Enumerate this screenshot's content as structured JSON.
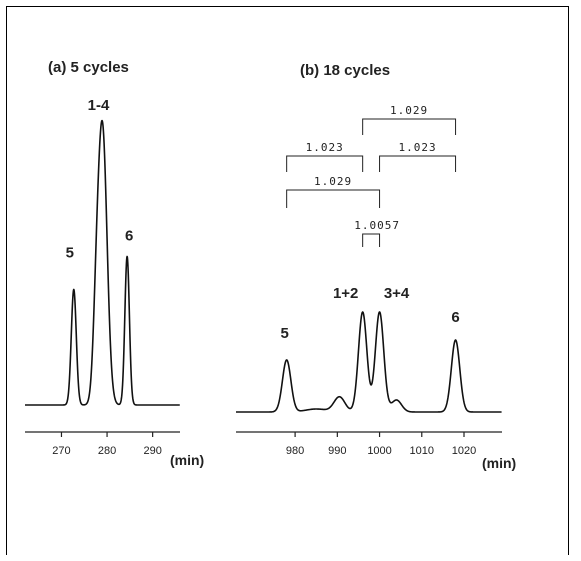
{
  "chart_data": [
    {
      "type": "line",
      "title": "(a) 5 cycles",
      "xlabel": "(min)",
      "ylabel": "",
      "xlim": [
        262,
        296
      ],
      "xticks": [
        270,
        280,
        290
      ],
      "grid": false,
      "peaks": [
        {
          "label": "5",
          "x": 272.7,
          "height": 0.42
        },
        {
          "label": "1-4",
          "x": 279.0,
          "height": 1.0
        },
        {
          "label": "6",
          "x": 284.4,
          "height": 0.54
        }
      ]
    },
    {
      "type": "line",
      "title": "(b) 18 cycles",
      "xlabel": "(min)",
      "ylabel": "",
      "xlim": [
        966,
        1029
      ],
      "xticks": [
        980,
        990,
        1000,
        1010,
        1020
      ],
      "grid": false,
      "peaks": [
        {
          "label": "5",
          "x": 978.0,
          "height": 0.52
        },
        {
          "label": "1+2",
          "x": 996.0,
          "height": 1.0
        },
        {
          "label": "3+4",
          "x": 1000.0,
          "height": 1.0
        },
        {
          "label": "6",
          "x": 1018.0,
          "height": 0.72
        }
      ],
      "ratios": [
        {
          "label": "1.029",
          "from": 996.0,
          "to": 1018.0
        },
        {
          "label": "1.023",
          "from": 978.0,
          "to": 996.0
        },
        {
          "label": "1.023",
          "from": 1000.0,
          "to": 1018.0
        },
        {
          "label": "1.029",
          "from": 978.0,
          "to": 1000.0
        },
        {
          "label": "1.0057",
          "from": 996.0,
          "to": 1000.0
        }
      ]
    }
  ]
}
